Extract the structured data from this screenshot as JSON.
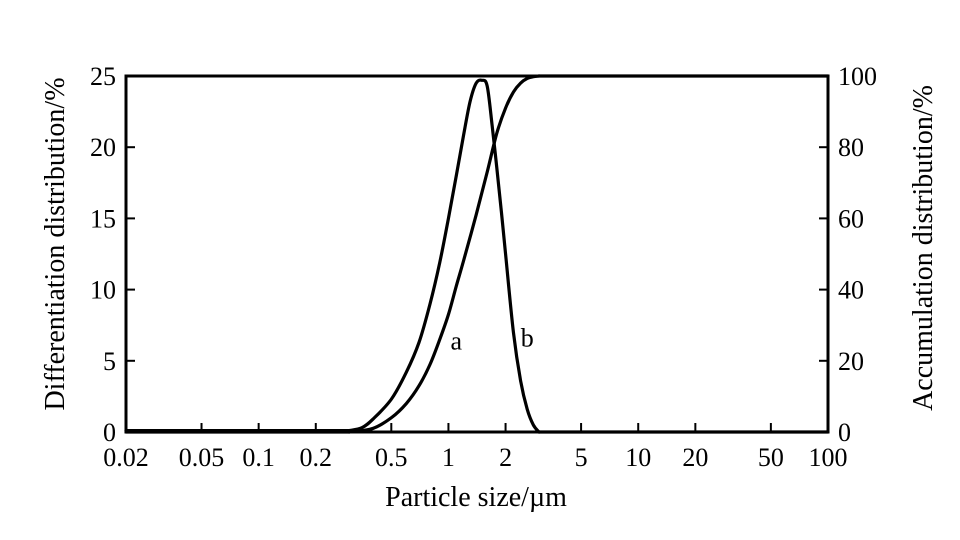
{
  "chart_data": {
    "type": "line",
    "title": "",
    "xlabel": "Particle size/µm",
    "ylabel_left": "Differentiation distribution/%",
    "ylabel_right": "Accumulation distribution/%",
    "x_scale": "log",
    "xlim": [
      0.02,
      100
    ],
    "ylim_left": [
      0,
      25
    ],
    "ylim_right": [
      0,
      100
    ],
    "grid": false,
    "x_ticks": [
      {
        "value": 0.02,
        "label": "0.02"
      },
      {
        "value": 0.05,
        "label": "0.05"
      },
      {
        "value": 0.1,
        "label": "0.1"
      },
      {
        "value": 0.2,
        "label": "0.2"
      },
      {
        "value": 0.5,
        "label": "0.5"
      },
      {
        "value": 1,
        "label": "1"
      },
      {
        "value": 2,
        "label": "2"
      },
      {
        "value": 5,
        "label": "5"
      },
      {
        "value": 10,
        "label": "10"
      },
      {
        "value": 20,
        "label": "20"
      },
      {
        "value": 50,
        "label": "50"
      },
      {
        "value": 100,
        "label": "100"
      }
    ],
    "y_left_ticks": [
      {
        "value": 0,
        "label": "0"
      },
      {
        "value": 5,
        "label": "5"
      },
      {
        "value": 10,
        "label": "10"
      },
      {
        "value": 15,
        "label": "15"
      },
      {
        "value": 20,
        "label": "20"
      },
      {
        "value": 25,
        "label": "25"
      }
    ],
    "y_right_ticks": [
      {
        "value": 0,
        "label": "0"
      },
      {
        "value": 20,
        "label": "20"
      },
      {
        "value": 40,
        "label": "40"
      },
      {
        "value": 60,
        "label": "60"
      },
      {
        "value": 80,
        "label": "80"
      },
      {
        "value": 100,
        "label": "100"
      }
    ],
    "series": [
      {
        "name": "a",
        "axis": "left",
        "x": [
          0.3,
          0.35,
          0.4,
          0.5,
          0.6,
          0.7,
          0.8,
          0.9,
          1.0,
          1.1,
          1.2,
          1.3,
          1.4,
          1.5,
          1.6,
          1.7,
          1.8,
          1.9,
          2.0,
          2.2,
          2.4,
          2.6,
          2.8,
          3.0
        ],
        "y": [
          0.1,
          0.3,
          0.9,
          2.3,
          4.2,
          6.3,
          9.0,
          11.9,
          15.0,
          18.0,
          20.8,
          23.2,
          24.5,
          24.7,
          24.3,
          21.5,
          18.5,
          15.5,
          12.5,
          7.0,
          3.6,
          1.6,
          0.5,
          0.0
        ]
      },
      {
        "name": "b",
        "axis": "right",
        "x": [
          0.3,
          0.4,
          0.5,
          0.6,
          0.7,
          0.8,
          0.9,
          1.0,
          1.1,
          1.2,
          1.4,
          1.6,
          1.8,
          2.0,
          2.2,
          2.4,
          2.6,
          2.8,
          3.0
        ],
        "y": [
          0,
          1,
          4,
          8,
          13,
          19,
          26,
          33,
          41,
          48,
          61,
          73,
          84,
          91,
          95.5,
          98,
          99.3,
          99.8,
          100
        ]
      }
    ],
    "annotations": [
      {
        "text": "a",
        "x": 1.1,
        "y": 5.8,
        "axis": "left"
      },
      {
        "text": "b",
        "x": 2.6,
        "y": 6.0,
        "axis": "left"
      }
    ]
  }
}
